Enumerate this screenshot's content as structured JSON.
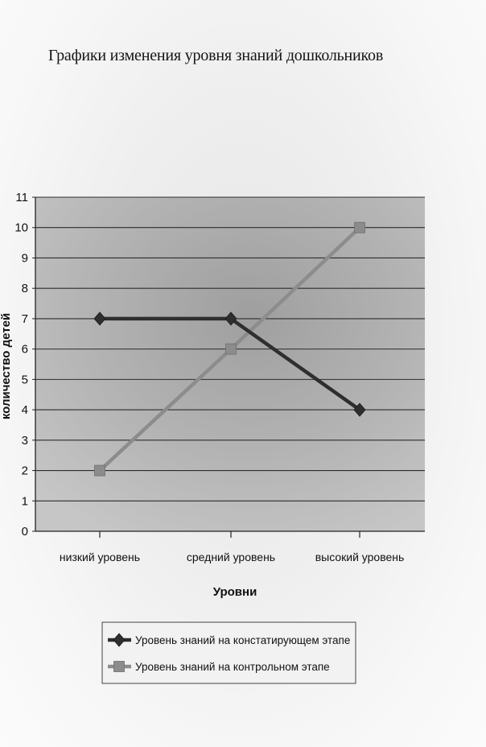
{
  "page": {
    "title": "Графики изменения уровня знаний дошкольников"
  },
  "chart_data": {
    "type": "line",
    "categories": [
      "низкий уровень",
      "средний уровень",
      "высокий уровень"
    ],
    "series": [
      {
        "name": "Уровень знаний на констатирующем этапе",
        "values": [
          7,
          7,
          4
        ],
        "color": "#2e2e2e",
        "marker": "diamond"
      },
      {
        "name": "Уровень знаний на контрольном этапе",
        "values": [
          2,
          6,
          10
        ],
        "color": "#8c8c8c",
        "marker": "square"
      }
    ],
    "xlabel": "Уровни",
    "ylabel": "количество детей",
    "ylim": [
      0,
      11
    ],
    "yticks": [
      "0",
      "1",
      "2",
      "3",
      "4",
      "5",
      "6",
      "7",
      "8",
      "9",
      "10",
      "11"
    ],
    "grid": true,
    "plot_background": "#b4b4b4",
    "legend_position": "bottom"
  }
}
